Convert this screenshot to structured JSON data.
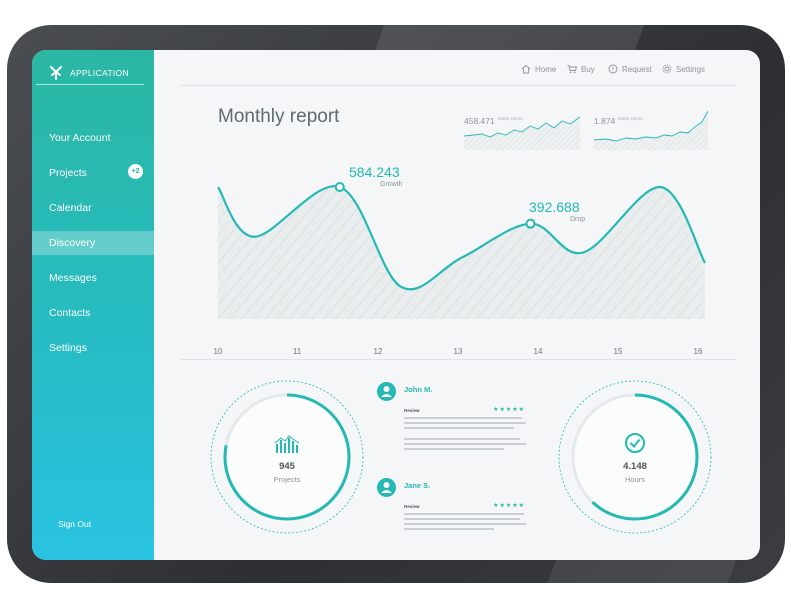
{
  "app": {
    "name": "APPLICATION"
  },
  "sidebar": {
    "items": [
      {
        "label": "Your Account"
      },
      {
        "label": "Projects",
        "badge": "+2"
      },
      {
        "label": "Calendar"
      },
      {
        "label": "Discovery",
        "active": true
      },
      {
        "label": "Messages"
      },
      {
        "label": "Contacts"
      },
      {
        "label": "Settings"
      }
    ],
    "sign_out": "Sign Out"
  },
  "topnav": {
    "home": "Home",
    "buy": "Buy",
    "request": "Request",
    "settings": "Settings"
  },
  "report": {
    "title": "Monthly report",
    "mini1": {
      "value": "458.471",
      "caption": "lorem\nipsum"
    },
    "mini2": {
      "value": "1.874",
      "caption": "lorem\nipsum"
    },
    "peaks": [
      {
        "value": "584.243",
        "caption": "Growth"
      },
      {
        "value": "392.688",
        "caption": "Drop"
      }
    ]
  },
  "chart_data": {
    "type": "area",
    "title": "Monthly report",
    "x": [
      10,
      11,
      12,
      13,
      14,
      15,
      16
    ],
    "xlabels": [
      "10",
      "11",
      "12",
      "13",
      "14",
      "15",
      "16"
    ],
    "series": [
      {
        "values": [
          {
            "x": 10.0,
            "y": 100
          },
          {
            "x": 10.45,
            "y": 62
          },
          {
            "x": 11.5,
            "y": 100
          },
          {
            "x": 12.25,
            "y": 24
          },
          {
            "x": 13.0,
            "y": 46
          },
          {
            "x": 13.85,
            "y": 72
          },
          {
            "x": 14.5,
            "y": 50
          },
          {
            "x": 15.45,
            "y": 100
          },
          {
            "x": 16.0,
            "y": 42
          }
        ]
      }
    ],
    "annotations": [
      {
        "x": 11.5,
        "label": "584.243",
        "caption": "Growth"
      },
      {
        "x": 13.85,
        "label": "392.688",
        "caption": "Drop"
      }
    ],
    "color": "#25b9b3"
  },
  "stats": {
    "projects": {
      "value": "945",
      "label": "Projects",
      "progress": 0.78
    },
    "hours": {
      "value": "4.148",
      "label": "Hours",
      "progress": 0.62
    }
  },
  "reviews": [
    {
      "name": "John M.",
      "review_label": "Review",
      "stars": "★★★★★"
    },
    {
      "name": "Jane S.",
      "review_label": "Review",
      "stars": "★★★★★"
    }
  ],
  "colors": {
    "accent": "#25b9b3",
    "sidebar_top": "#2bb7a2",
    "sidebar_bottom": "#29c3e2"
  }
}
